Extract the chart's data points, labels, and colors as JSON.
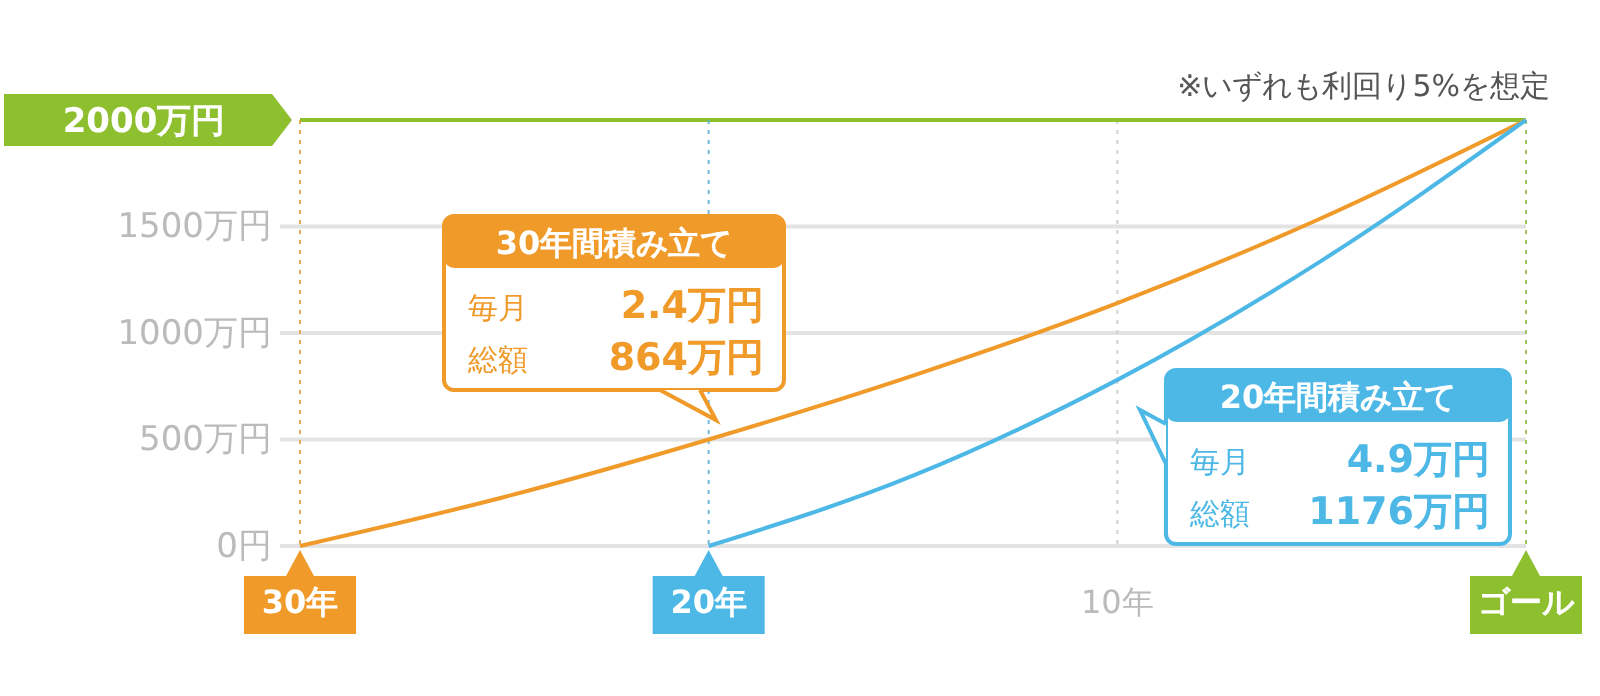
{
  "chart_data": {
    "type": "line",
    "xlim": [
      30,
      0
    ],
    "xticks": [
      {
        "value": 30,
        "label": "30年"
      },
      {
        "value": 20,
        "label": "20年"
      },
      {
        "value": 10,
        "label": "10年"
      },
      {
        "value": 0,
        "label": "ゴール"
      }
    ],
    "ylim": [
      0,
      2000
    ],
    "yticks": [
      {
        "value": 0,
        "label": "0円"
      },
      {
        "value": 500,
        "label": "500万円"
      },
      {
        "value": 1000,
        "label": "1000万円"
      },
      {
        "value": 1500,
        "label": "1500万円"
      }
    ],
    "grid": true,
    "series": [
      {
        "color": "#f09a2a",
        "x": [
          30,
          25,
          20,
          15,
          10,
          5,
          0
        ],
        "values": [
          0,
          230,
          500,
          800,
          1140,
          1540,
          2000
        ]
      },
      {
        "color": "#4db8e6",
        "x": [
          20,
          15,
          10,
          5,
          0
        ],
        "values": [
          0,
          330,
          780,
          1340,
          2000
        ]
      }
    ],
    "ref_lines": [
      {
        "axis": "y",
        "value": 2000,
        "label": "2000万円",
        "color": "#8dbf2e",
        "line_style": "solid"
      },
      {
        "axis": "x",
        "value": 30,
        "color": "#f09a2a",
        "line_style": "dotted"
      },
      {
        "axis": "x",
        "value": 20,
        "color": "#4db8e6",
        "line_style": "dotted"
      },
      {
        "axis": "x",
        "value": 0,
        "color": "#8dbf2e",
        "line_style": "dotted"
      }
    ],
    "annotations": [
      "※いずれも利回り5%を想定",
      "30年間積み立て",
      "毎月",
      "2.4万円",
      "総額",
      "864万円",
      "20年間積み立て",
      "毎月",
      "4.9万円",
      "総額",
      "1176万円"
    ]
  }
}
